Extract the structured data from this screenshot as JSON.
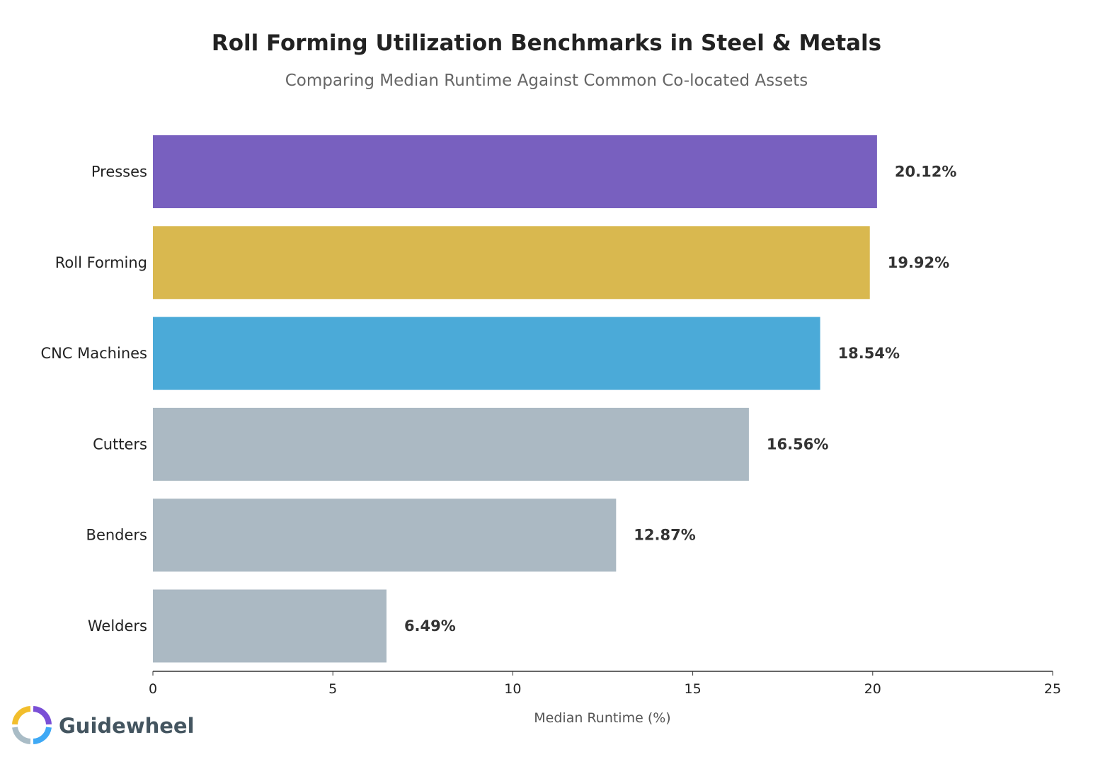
{
  "chart_data": {
    "type": "bar",
    "orientation": "horizontal",
    "title": "Roll Forming Utilization Benchmarks in Steel & Metals",
    "subtitle": "Comparing Median Runtime Against Common Co-located Assets",
    "xlabel": "Median Runtime (%)",
    "ylabel": "",
    "xlim": [
      0,
      25
    ],
    "xticks": [
      "0",
      "5",
      "10",
      "15",
      "20",
      "25"
    ],
    "xtick_values": [
      0,
      5,
      10,
      15,
      20,
      25
    ],
    "grid": false,
    "categories": [
      "Presses",
      "Roll Forming",
      "CNC Machines",
      "Cutters",
      "Benders",
      "Welders"
    ],
    "values": [
      20.12,
      19.92,
      18.54,
      16.56,
      12.87,
      6.49
    ],
    "value_labels": [
      "20.12%",
      "19.92%",
      "18.54%",
      "16.56%",
      "12.87%",
      "6.49%"
    ],
    "colors": [
      "#7860BF",
      "#D9B84F",
      "#4BAAD8",
      "#ABB9C3",
      "#ABB9C3",
      "#ABB9C3"
    ]
  },
  "brand": {
    "name": "Guidewheel",
    "logo_colors": [
      "#7A4FD6",
      "#3FA9F5",
      "#A9BCC6",
      "#F2BE2C"
    ]
  }
}
